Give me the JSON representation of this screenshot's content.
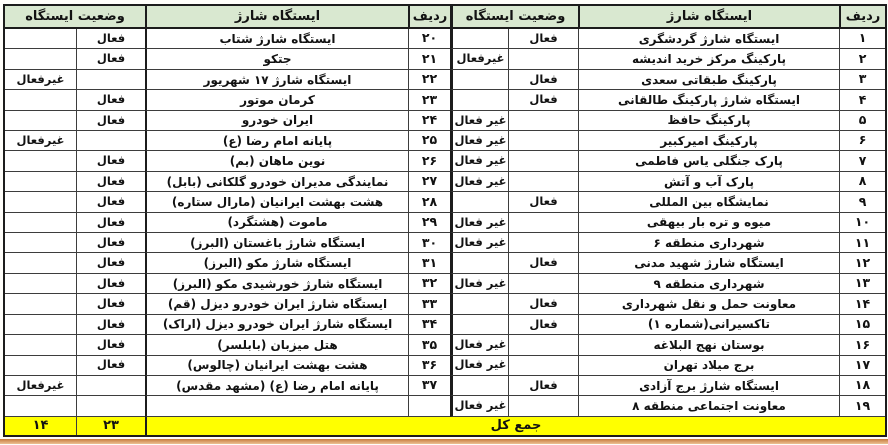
{
  "table": {
    "columns": {
      "row": "ردیف",
      "station": "ایستگاه شارژ",
      "status": "وضعیت ایستگاه"
    },
    "right_rows": [
      {
        "no": "۱",
        "station": "ایستگاه شارژ گردشگری",
        "active": "فعال",
        "inactive": ""
      },
      {
        "no": "۲",
        "station": "پارکینگ مرکز خرید اندیشه",
        "active": "",
        "inactive": "غیرفعال"
      },
      {
        "no": "۳",
        "station": "پارکینگ طبقاتی سعدی",
        "active": "فعال",
        "inactive": ""
      },
      {
        "no": "۴",
        "station": "ایستگاه شارژ پارکینگ طالقانی",
        "active": "فعال",
        "inactive": ""
      },
      {
        "no": "۵",
        "station": "پارکینگ حافظ",
        "active": "",
        "inactive": "غیر فعال"
      },
      {
        "no": "۶",
        "station": "پارکینگ امیرکبیر",
        "active": "",
        "inactive": "غیر فعال"
      },
      {
        "no": "۷",
        "station": "پارک جنگلی یاس فاطمی",
        "active": "",
        "inactive": "غیر فعال"
      },
      {
        "no": "۸",
        "station": "پارک آب و آتش",
        "active": "",
        "inactive": "غیر فعال"
      },
      {
        "no": "۹",
        "station": "نمایشگاه بین المللی",
        "active": "فعال",
        "inactive": ""
      },
      {
        "no": "۱۰",
        "station": "میوه و تره بار بیهقی",
        "active": "",
        "inactive": "غیر فعال"
      },
      {
        "no": "۱۱",
        "station": "شهرداری منطقه ۶",
        "active": "",
        "inactive": "غیر فعال"
      },
      {
        "no": "۱۲",
        "station": "ایستگاه شارژ شهید مدنی",
        "active": "فعال",
        "inactive": ""
      },
      {
        "no": "۱۳",
        "station": "شهرداری منطقه ۹",
        "active": "",
        "inactive": "غیر فعال"
      },
      {
        "no": "۱۴",
        "station": "معاونت حمل و نقل شهرداری",
        "active": "فعال",
        "inactive": ""
      },
      {
        "no": "۱۵",
        "station": "تاکسیرانی(شماره ۱)",
        "active": "فعال",
        "inactive": ""
      },
      {
        "no": "۱۶",
        "station": "بوستان نهج البلاغه",
        "active": "",
        "inactive": "غیر فعال"
      },
      {
        "no": "۱۷",
        "station": "برج میلاد تهران",
        "active": "",
        "inactive": "غیر فعال"
      },
      {
        "no": "۱۸",
        "station": "ایستگاه شارژ برج آزادی",
        "active": "فعال",
        "inactive": ""
      },
      {
        "no": "۱۹",
        "station": "معاونت اجتماعی منطقه ۸",
        "active": "",
        "inactive": "غیر فعال"
      }
    ],
    "left_rows": [
      {
        "no": "۲۰",
        "station": "ایستگاه شارژ شتاب",
        "active": "فعال",
        "inactive": ""
      },
      {
        "no": "۲۱",
        "station": "جتکو",
        "active": "فعال",
        "inactive": ""
      },
      {
        "no": "۲۲",
        "station": "ایستگاه شارژ ۱۷ شهریور",
        "active": "",
        "inactive": "غیرفعال"
      },
      {
        "no": "۲۳",
        "station": "کرمان موتور",
        "active": "فعال",
        "inactive": ""
      },
      {
        "no": "۲۴",
        "station": "ایران خودرو",
        "active": "فعال",
        "inactive": ""
      },
      {
        "no": "۲۵",
        "station": "پایانه امام رضا (ع)",
        "active": "",
        "inactive": "غیرفعال"
      },
      {
        "no": "۲۶",
        "station": "نوین ماهان (بم)",
        "active": "فعال",
        "inactive": ""
      },
      {
        "no": "۲۷",
        "station": "نمایندگی مدیران خودرو گلکانی (بابل)",
        "active": "فعال",
        "inactive": ""
      },
      {
        "no": "۲۸",
        "station": "هشت بهشت ایرانیان (مارال ستاره)",
        "active": "فعال",
        "inactive": ""
      },
      {
        "no": "۲۹",
        "station": "ماموت (هشتگرد)",
        "active": "فعال",
        "inactive": ""
      },
      {
        "no": "۳۰",
        "station": "ایستگاه شارژ باغستان (البرز)",
        "active": "فعال",
        "inactive": ""
      },
      {
        "no": "۳۱",
        "station": "ایستگاه شارژ مکو (البرز)",
        "active": "فعال",
        "inactive": ""
      },
      {
        "no": "۳۲",
        "station": "ایستگاه شارژ خورشیدی مکو (البرز)",
        "active": "فعال",
        "inactive": ""
      },
      {
        "no": "۳۳",
        "station": "ایستگاه شارژ ایران خودرو دیزل (قم)",
        "active": "فعال",
        "inactive": ""
      },
      {
        "no": "۳۴",
        "station": "ایستگاه شارژ ایران خودرو دیزل (اراک)",
        "active": "فعال",
        "inactive": ""
      },
      {
        "no": "۳۵",
        "station": "هتل میزبان (بابلسر)",
        "active": "فعال",
        "inactive": ""
      },
      {
        "no": "۳۶",
        "station": "هشت بهشت ایرانیان (چالوس)",
        "active": "فعال",
        "inactive": ""
      },
      {
        "no": "۳۷",
        "station": "پایانه امام رضا (ع) (مشهد مقدس)",
        "active": "",
        "inactive": "غیرفعال"
      },
      {
        "no": "",
        "station": "",
        "active": "",
        "inactive": ""
      }
    ],
    "totals": {
      "label": "جمع کل",
      "active_total": "۲۳",
      "inactive_total": "۱۴"
    }
  },
  "colors": {
    "header_bg": "#d9e8d0",
    "total_bg": "#ffff00",
    "accent_bar": "#c67b3d"
  }
}
